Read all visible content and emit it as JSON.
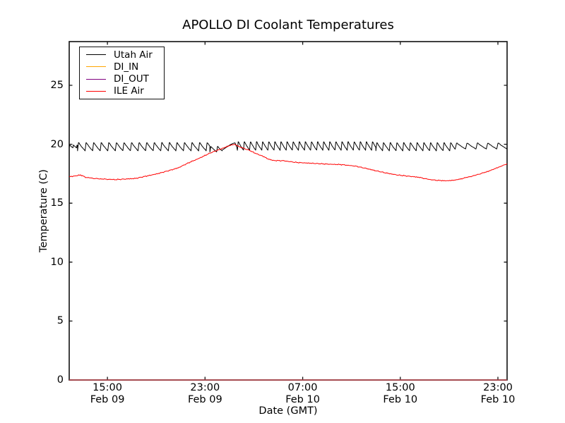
{
  "figure": {
    "background": "#ffffff",
    "frame_color": "#111111"
  },
  "chart_data": {
    "type": "line",
    "title": "APOLLO DI Coolant Temperatures",
    "xlabel": "Date (GMT)",
    "ylabel": "Temperature (C)",
    "grid": false,
    "legend_position": "upper left",
    "x_unit": "hours_since_Feb09_1200_GMT",
    "xlim": [
      -0.13,
      35.75
    ],
    "ylim": [
      0,
      28.71
    ],
    "yticks": [
      0,
      5,
      10,
      15,
      20,
      25
    ],
    "xticks": [
      {
        "t": 3,
        "time": "15:00",
        "date": "Feb 09"
      },
      {
        "t": 11,
        "time": "23:00",
        "date": "Feb 09"
      },
      {
        "t": 19,
        "time": "07:00",
        "date": "Feb 10"
      },
      {
        "t": 27,
        "time": "15:00",
        "date": "Feb 10"
      },
      {
        "t": 35,
        "time": "23:00",
        "date": "Feb 10"
      }
    ],
    "series": [
      {
        "name": "Utah Air",
        "color": "#000000",
        "style": "sawtooth_composite",
        "line_width": 1,
        "rise_fraction": 0.14,
        "decay_exponent": 0.8,
        "noise_amplitude": 0.02,
        "segments": [
          {
            "type": "sawtooth",
            "t0": -0.13,
            "t1": 0.55,
            "period": 0.3,
            "peak": 19.95,
            "trough": 19.7
          },
          {
            "type": "sawtooth",
            "t0": 0.55,
            "t1": 11.4,
            "period": 0.62,
            "peak": 20.2,
            "trough": 19.45
          },
          {
            "type": "sawtooth",
            "t0": 11.4,
            "t1": 12.4,
            "period": 0.55,
            "peak": 19.85,
            "trough": 19.35
          },
          {
            "type": "points",
            "points": [
              [
                12.4,
                19.5
              ],
              [
                12.75,
                19.75
              ],
              [
                13.05,
                19.95
              ],
              [
                13.3,
                20.08
              ],
              [
                13.45,
                20.12
              ],
              [
                13.6,
                19.75
              ]
            ]
          },
          {
            "type": "sawtooth",
            "t0": 13.65,
            "t1": 25.0,
            "period": 0.5,
            "peak": 20.28,
            "trough": 19.5
          },
          {
            "type": "sawtooth",
            "t0": 25.0,
            "t1": 31.5,
            "period": 0.55,
            "peak": 20.2,
            "trough": 19.45
          },
          {
            "type": "sawtooth",
            "t0": 31.5,
            "t1": 35.75,
            "period": 0.85,
            "peak": 20.15,
            "trough": 19.6
          }
        ]
      },
      {
        "name": "DI_IN",
        "color": "#ffa500",
        "style": "flat",
        "value": 0.0,
        "line_width": 1.6
      },
      {
        "name": "DI_OUT",
        "color": "#800080",
        "style": "flat",
        "value": 0.0,
        "line_width": 1.2
      },
      {
        "name": "ILE Air",
        "color": "#ff0000",
        "style": "points",
        "line_width": 1,
        "noise_amplitude": 0.05,
        "points": [
          [
            -0.13,
            17.25
          ],
          [
            0.3,
            17.3
          ],
          [
            0.8,
            17.4
          ],
          [
            1.2,
            17.2
          ],
          [
            1.9,
            17.1
          ],
          [
            2.6,
            17.05
          ],
          [
            3.6,
            17.0
          ],
          [
            4.5,
            17.05
          ],
          [
            5.3,
            17.1
          ],
          [
            6.2,
            17.3
          ],
          [
            7.1,
            17.5
          ],
          [
            8.0,
            17.75
          ],
          [
            8.8,
            18.0
          ],
          [
            9.7,
            18.45
          ],
          [
            10.5,
            18.8
          ],
          [
            11.4,
            19.25
          ],
          [
            12.3,
            19.6
          ],
          [
            12.9,
            19.85
          ],
          [
            13.4,
            20.0
          ],
          [
            13.9,
            19.75
          ],
          [
            14.6,
            19.5
          ],
          [
            15.2,
            19.2
          ],
          [
            15.7,
            19.0
          ],
          [
            16.3,
            18.7
          ],
          [
            16.6,
            18.62
          ],
          [
            17.5,
            18.6
          ],
          [
            18.1,
            18.5
          ],
          [
            18.6,
            18.45
          ],
          [
            19.5,
            18.4
          ],
          [
            20.4,
            18.35
          ],
          [
            21.3,
            18.3
          ],
          [
            22.1,
            18.28
          ],
          [
            23.3,
            18.15
          ],
          [
            24.2,
            17.95
          ],
          [
            25.0,
            17.75
          ],
          [
            25.9,
            17.55
          ],
          [
            26.7,
            17.4
          ],
          [
            27.6,
            17.3
          ],
          [
            28.5,
            17.2
          ],
          [
            29.2,
            17.05
          ],
          [
            29.6,
            16.98
          ],
          [
            30.3,
            16.92
          ],
          [
            30.8,
            16.9
          ],
          [
            31.4,
            16.95
          ],
          [
            31.9,
            17.05
          ],
          [
            32.5,
            17.2
          ],
          [
            33.1,
            17.35
          ],
          [
            33.7,
            17.55
          ],
          [
            34.2,
            17.7
          ],
          [
            34.8,
            17.95
          ],
          [
            35.3,
            18.15
          ],
          [
            35.75,
            18.35
          ]
        ]
      }
    ]
  }
}
